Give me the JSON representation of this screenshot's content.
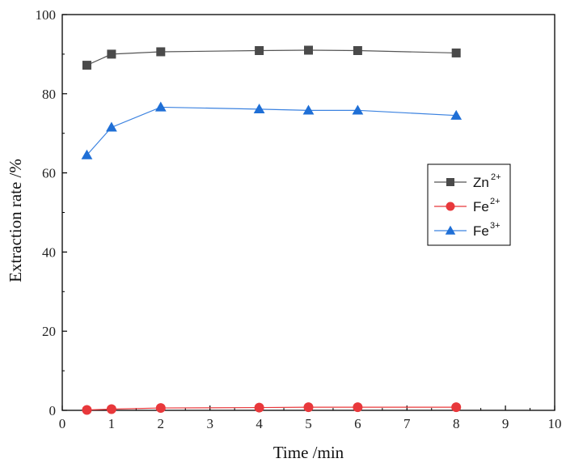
{
  "chart_data": {
    "type": "line",
    "title": "",
    "xlabel": "Time /min",
    "ylabel": "Extraction rate /%",
    "xlim": [
      0,
      10
    ],
    "ylim": [
      0,
      100
    ],
    "x_ticks": [
      "0",
      "1",
      "2",
      "3",
      "4",
      "5",
      "6",
      "7",
      "8",
      "9",
      "10"
    ],
    "y_ticks": [
      "0",
      "20",
      "40",
      "60",
      "80",
      "100"
    ],
    "grid": false,
    "legend_position": "right",
    "x": [
      0.5,
      1,
      2,
      4,
      5,
      6,
      8
    ],
    "series": [
      {
        "name": "Zn",
        "sup": "2+",
        "marker": "square",
        "color": "#4a4a4a",
        "line_color": "#555555",
        "values": [
          87.2,
          90.0,
          90.6,
          90.9,
          91.0,
          90.9,
          90.3
        ]
      },
      {
        "name": "Fe",
        "sup": "2+",
        "marker": "circle",
        "color": "#e8383b",
        "line_color": "#e8383b",
        "values": [
          0.1,
          0.3,
          0.6,
          0.7,
          0.8,
          0.8,
          0.8
        ]
      },
      {
        "name": "Fe",
        "sup": "3+",
        "marker": "triangle",
        "color": "#1f6fd6",
        "line_color": "#3b82e0",
        "values": [
          64.5,
          71.5,
          76.6,
          76.1,
          75.8,
          75.8,
          74.5
        ]
      }
    ]
  }
}
